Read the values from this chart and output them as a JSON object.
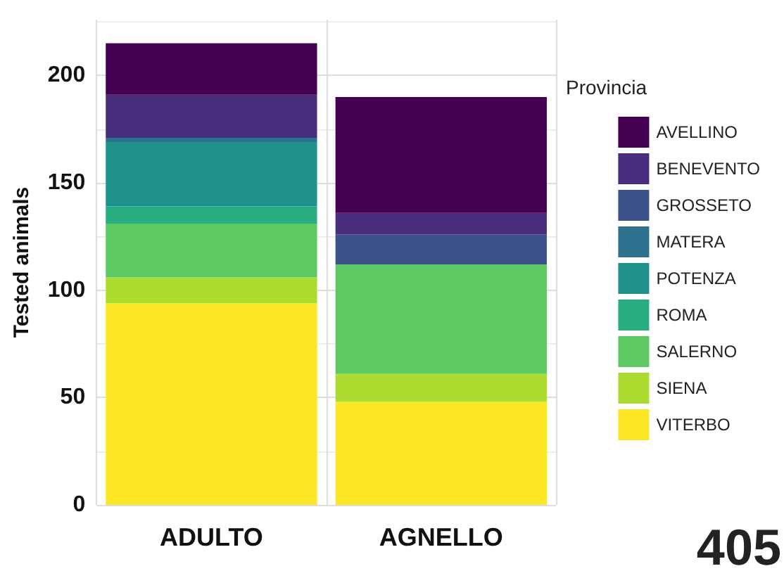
{
  "chart_data": {
    "type": "bar",
    "stacked": true,
    "ylabel": "Tested animals",
    "legend_title": "Provincia",
    "legend": "right",
    "grid": true,
    "categories": [
      "ADULTO",
      "AGNELLO"
    ],
    "series": [
      {
        "name": "VITERBO",
        "color": "#fde725",
        "values": [
          94,
          48
        ]
      },
      {
        "name": "SIENA",
        "color": "#addc30",
        "values": [
          12,
          13
        ]
      },
      {
        "name": "SALERNO",
        "color": "#5ec962",
        "values": [
          25,
          51
        ]
      },
      {
        "name": "ROMA",
        "color": "#28ae80",
        "values": [
          8,
          0
        ]
      },
      {
        "name": "POTENZA",
        "color": "#21918c",
        "values": [
          30,
          0
        ]
      },
      {
        "name": "MATERA",
        "color": "#2c728e",
        "values": [
          2,
          0
        ]
      },
      {
        "name": "GROSSETO",
        "color": "#3b528b",
        "values": [
          0,
          14
        ]
      },
      {
        "name": "BENEVENTO",
        "color": "#472d7b",
        "values": [
          20,
          10
        ]
      },
      {
        "name": "AVELLINO",
        "color": "#440154",
        "values": [
          24,
          54
        ]
      }
    ],
    "ylim": [
      0,
      226
    ],
    "yticks": [
      0,
      50,
      100,
      150,
      200
    ],
    "annotations": [
      "405"
    ]
  }
}
